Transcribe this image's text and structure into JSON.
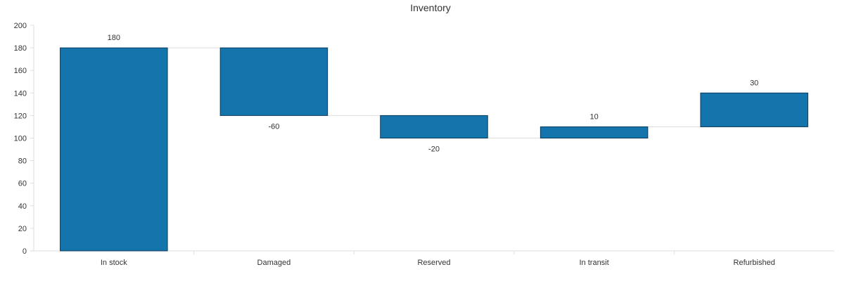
{
  "chart_data": {
    "type": "waterfall",
    "title": "Inventory",
    "categories": [
      "In stock",
      "Damaged",
      "Reserved",
      "In transit",
      "Refurbished"
    ],
    "values": [
      180,
      -60,
      -20,
      10,
      30
    ],
    "data_labels": [
      "180",
      "-60",
      "-20",
      "10",
      "30"
    ],
    "ylim": [
      0,
      200
    ],
    "yticks": [
      0,
      20,
      40,
      60,
      80,
      100,
      120,
      140,
      160,
      180,
      200
    ],
    "xlabel": "",
    "ylabel": "",
    "grid": false,
    "legend": "none",
    "bar_color": "#1474ac",
    "bar_stroke": "#0d3a5c",
    "connector_color": "#dddddd",
    "axis_color": "#dddddd",
    "label_color": "#333333"
  }
}
